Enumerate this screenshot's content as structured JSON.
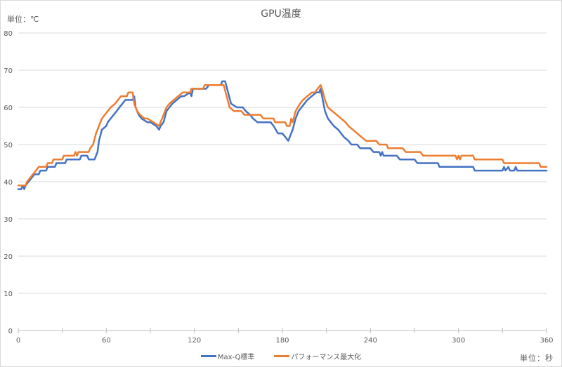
{
  "chart": {
    "title": "GPU温度",
    "y_unit_label": "単位：℃",
    "x_unit_label": "単位：秒"
  },
  "legend": [
    {
      "name": "Max-Q標準",
      "color": "#4472C4"
    },
    {
      "name": "パフォーマンス最大化",
      "color": "#ED7D31"
    }
  ],
  "chart_data": {
    "type": "line",
    "title": "GPU温度",
    "xlabel": "単位：秒",
    "ylabel": "単位：℃",
    "xlim": [
      0,
      360
    ],
    "ylim": [
      0,
      80
    ],
    "x_ticks": [
      0,
      60,
      120,
      180,
      240,
      300,
      360
    ],
    "x_minor_ticks": [
      30,
      90,
      150,
      210,
      270,
      330
    ],
    "y_ticks": [
      0,
      10,
      20,
      30,
      40,
      50,
      60,
      70,
      80
    ],
    "grid": true,
    "legend_position": "bottom",
    "series": [
      {
        "name": "Max-Q標準",
        "color": "#4472C4",
        "points": [
          [
            0,
            38
          ],
          [
            2,
            38
          ],
          [
            3,
            39
          ],
          [
            4,
            38
          ],
          [
            5,
            39
          ],
          [
            7,
            40
          ],
          [
            9,
            41
          ],
          [
            11,
            42
          ],
          [
            14,
            42
          ],
          [
            15,
            43
          ],
          [
            19,
            43
          ],
          [
            20,
            44
          ],
          [
            25,
            44
          ],
          [
            26,
            45
          ],
          [
            32,
            45
          ],
          [
            33,
            46
          ],
          [
            42,
            46
          ],
          [
            43,
            47
          ],
          [
            47,
            47
          ],
          [
            48,
            46
          ],
          [
            52,
            46
          ],
          [
            54,
            48
          ],
          [
            55,
            51
          ],
          [
            57,
            54
          ],
          [
            60,
            55
          ],
          [
            61,
            56
          ],
          [
            63,
            57
          ],
          [
            65,
            58
          ],
          [
            67,
            59
          ],
          [
            69,
            60
          ],
          [
            71,
            61
          ],
          [
            73,
            62
          ],
          [
            78,
            62
          ],
          [
            79,
            63
          ],
          [
            80,
            60
          ],
          [
            82,
            58
          ],
          [
            84,
            57
          ],
          [
            88,
            56
          ],
          [
            90,
            56
          ],
          [
            94,
            55
          ],
          [
            96,
            54
          ],
          [
            97,
            55
          ],
          [
            99,
            56
          ],
          [
            101,
            59
          ],
          [
            103,
            60
          ],
          [
            105,
            61
          ],
          [
            108,
            62
          ],
          [
            111,
            63
          ],
          [
            113,
            63
          ],
          [
            117,
            64
          ],
          [
            118,
            63
          ],
          [
            119,
            65
          ],
          [
            128,
            65
          ],
          [
            130,
            66
          ],
          [
            138,
            66
          ],
          [
            139,
            67
          ],
          [
            141,
            67
          ],
          [
            143,
            64
          ],
          [
            145,
            61
          ],
          [
            149,
            60
          ],
          [
            153,
            60
          ],
          [
            155,
            59
          ],
          [
            158,
            58
          ],
          [
            160,
            57
          ],
          [
            163,
            56
          ],
          [
            172,
            56
          ],
          [
            174,
            55
          ],
          [
            177,
            53
          ],
          [
            180,
            53
          ],
          [
            182,
            52
          ],
          [
            184,
            51
          ],
          [
            185,
            52
          ],
          [
            187,
            54
          ],
          [
            189,
            57
          ],
          [
            191,
            59
          ],
          [
            193,
            60
          ],
          [
            195,
            61
          ],
          [
            197,
            62
          ],
          [
            200,
            63
          ],
          [
            203,
            64
          ],
          [
            205,
            64
          ],
          [
            206,
            65
          ],
          [
            207,
            63
          ],
          [
            209,
            59
          ],
          [
            211,
            57
          ],
          [
            213,
            56
          ],
          [
            215,
            55
          ],
          [
            218,
            54
          ],
          [
            220,
            53
          ],
          [
            222,
            52
          ],
          [
            225,
            51
          ],
          [
            227,
            50
          ],
          [
            231,
            50
          ],
          [
            233,
            49
          ],
          [
            240,
            49
          ],
          [
            242,
            48
          ],
          [
            246,
            48
          ],
          [
            247,
            47
          ],
          [
            248,
            48
          ],
          [
            249,
            47
          ],
          [
            258,
            47
          ],
          [
            260,
            46
          ],
          [
            270,
            46
          ],
          [
            272,
            45
          ],
          [
            286,
            45
          ],
          [
            287,
            44
          ],
          [
            310,
            44
          ],
          [
            311,
            43
          ],
          [
            330,
            43
          ],
          [
            331,
            44
          ],
          [
            332,
            43
          ],
          [
            334,
            44
          ],
          [
            335,
            43
          ],
          [
            338,
            43
          ],
          [
            339,
            44
          ],
          [
            340,
            43
          ],
          [
            360,
            43
          ]
        ]
      },
      {
        "name": "パフォーマンス最大化",
        "color": "#ED7D31",
        "points": [
          [
            0,
            39
          ],
          [
            5,
            39
          ],
          [
            6,
            40
          ],
          [
            8,
            41
          ],
          [
            10,
            42
          ],
          [
            12,
            43
          ],
          [
            14,
            44
          ],
          [
            19,
            44
          ],
          [
            20,
            45
          ],
          [
            23,
            45
          ],
          [
            24,
            46
          ],
          [
            30,
            46
          ],
          [
            31,
            47
          ],
          [
            38,
            47
          ],
          [
            39,
            48
          ],
          [
            40,
            47
          ],
          [
            41,
            48
          ],
          [
            48,
            48
          ],
          [
            49,
            49
          ],
          [
            51,
            50
          ],
          [
            53,
            53
          ],
          [
            55,
            55
          ],
          [
            57,
            57
          ],
          [
            59,
            58
          ],
          [
            61,
            59
          ],
          [
            63,
            60
          ],
          [
            66,
            61
          ],
          [
            68,
            62
          ],
          [
            70,
            63
          ],
          [
            74,
            63
          ],
          [
            75,
            64
          ],
          [
            77,
            64
          ],
          [
            78,
            64
          ],
          [
            79,
            61
          ],
          [
            81,
            59
          ],
          [
            83,
            58
          ],
          [
            86,
            57
          ],
          [
            88,
            57
          ],
          [
            92,
            56
          ],
          [
            96,
            55
          ],
          [
            97,
            56
          ],
          [
            99,
            58
          ],
          [
            101,
            60
          ],
          [
            103,
            61
          ],
          [
            106,
            62
          ],
          [
            109,
            63
          ],
          [
            112,
            64
          ],
          [
            117,
            64
          ],
          [
            118,
            65
          ],
          [
            126,
            65
          ],
          [
            127,
            66
          ],
          [
            135,
            66
          ],
          [
            136,
            66
          ],
          [
            138,
            66
          ],
          [
            140,
            66
          ],
          [
            142,
            63
          ],
          [
            144,
            60
          ],
          [
            147,
            59
          ],
          [
            152,
            59
          ],
          [
            154,
            58
          ],
          [
            165,
            58
          ],
          [
            167,
            57
          ],
          [
            174,
            57
          ],
          [
            175,
            56
          ],
          [
            182,
            56
          ],
          [
            183,
            55
          ],
          [
            185,
            55
          ],
          [
            186,
            57
          ],
          [
            187,
            56
          ],
          [
            189,
            59
          ],
          [
            192,
            61
          ],
          [
            194,
            62
          ],
          [
            197,
            63
          ],
          [
            200,
            64
          ],
          [
            202,
            64
          ],
          [
            204,
            65
          ],
          [
            206,
            66
          ],
          [
            207,
            65
          ],
          [
            209,
            62
          ],
          [
            211,
            60
          ],
          [
            214,
            59
          ],
          [
            217,
            58
          ],
          [
            220,
            57
          ],
          [
            223,
            56
          ],
          [
            225,
            55
          ],
          [
            228,
            54
          ],
          [
            231,
            53
          ],
          [
            234,
            52
          ],
          [
            237,
            51
          ],
          [
            244,
            51
          ],
          [
            246,
            50
          ],
          [
            251,
            50
          ],
          [
            252,
            49
          ],
          [
            262,
            49
          ],
          [
            264,
            48
          ],
          [
            274,
            48
          ],
          [
            276,
            47
          ],
          [
            298,
            47
          ],
          [
            299,
            46
          ],
          [
            300,
            47
          ],
          [
            301,
            46
          ],
          [
            302,
            47
          ],
          [
            310,
            47
          ],
          [
            311,
            46
          ],
          [
            330,
            46
          ],
          [
            331,
            45
          ],
          [
            355,
            45
          ],
          [
            356,
            44
          ],
          [
            360,
            44
          ]
        ]
      }
    ]
  }
}
